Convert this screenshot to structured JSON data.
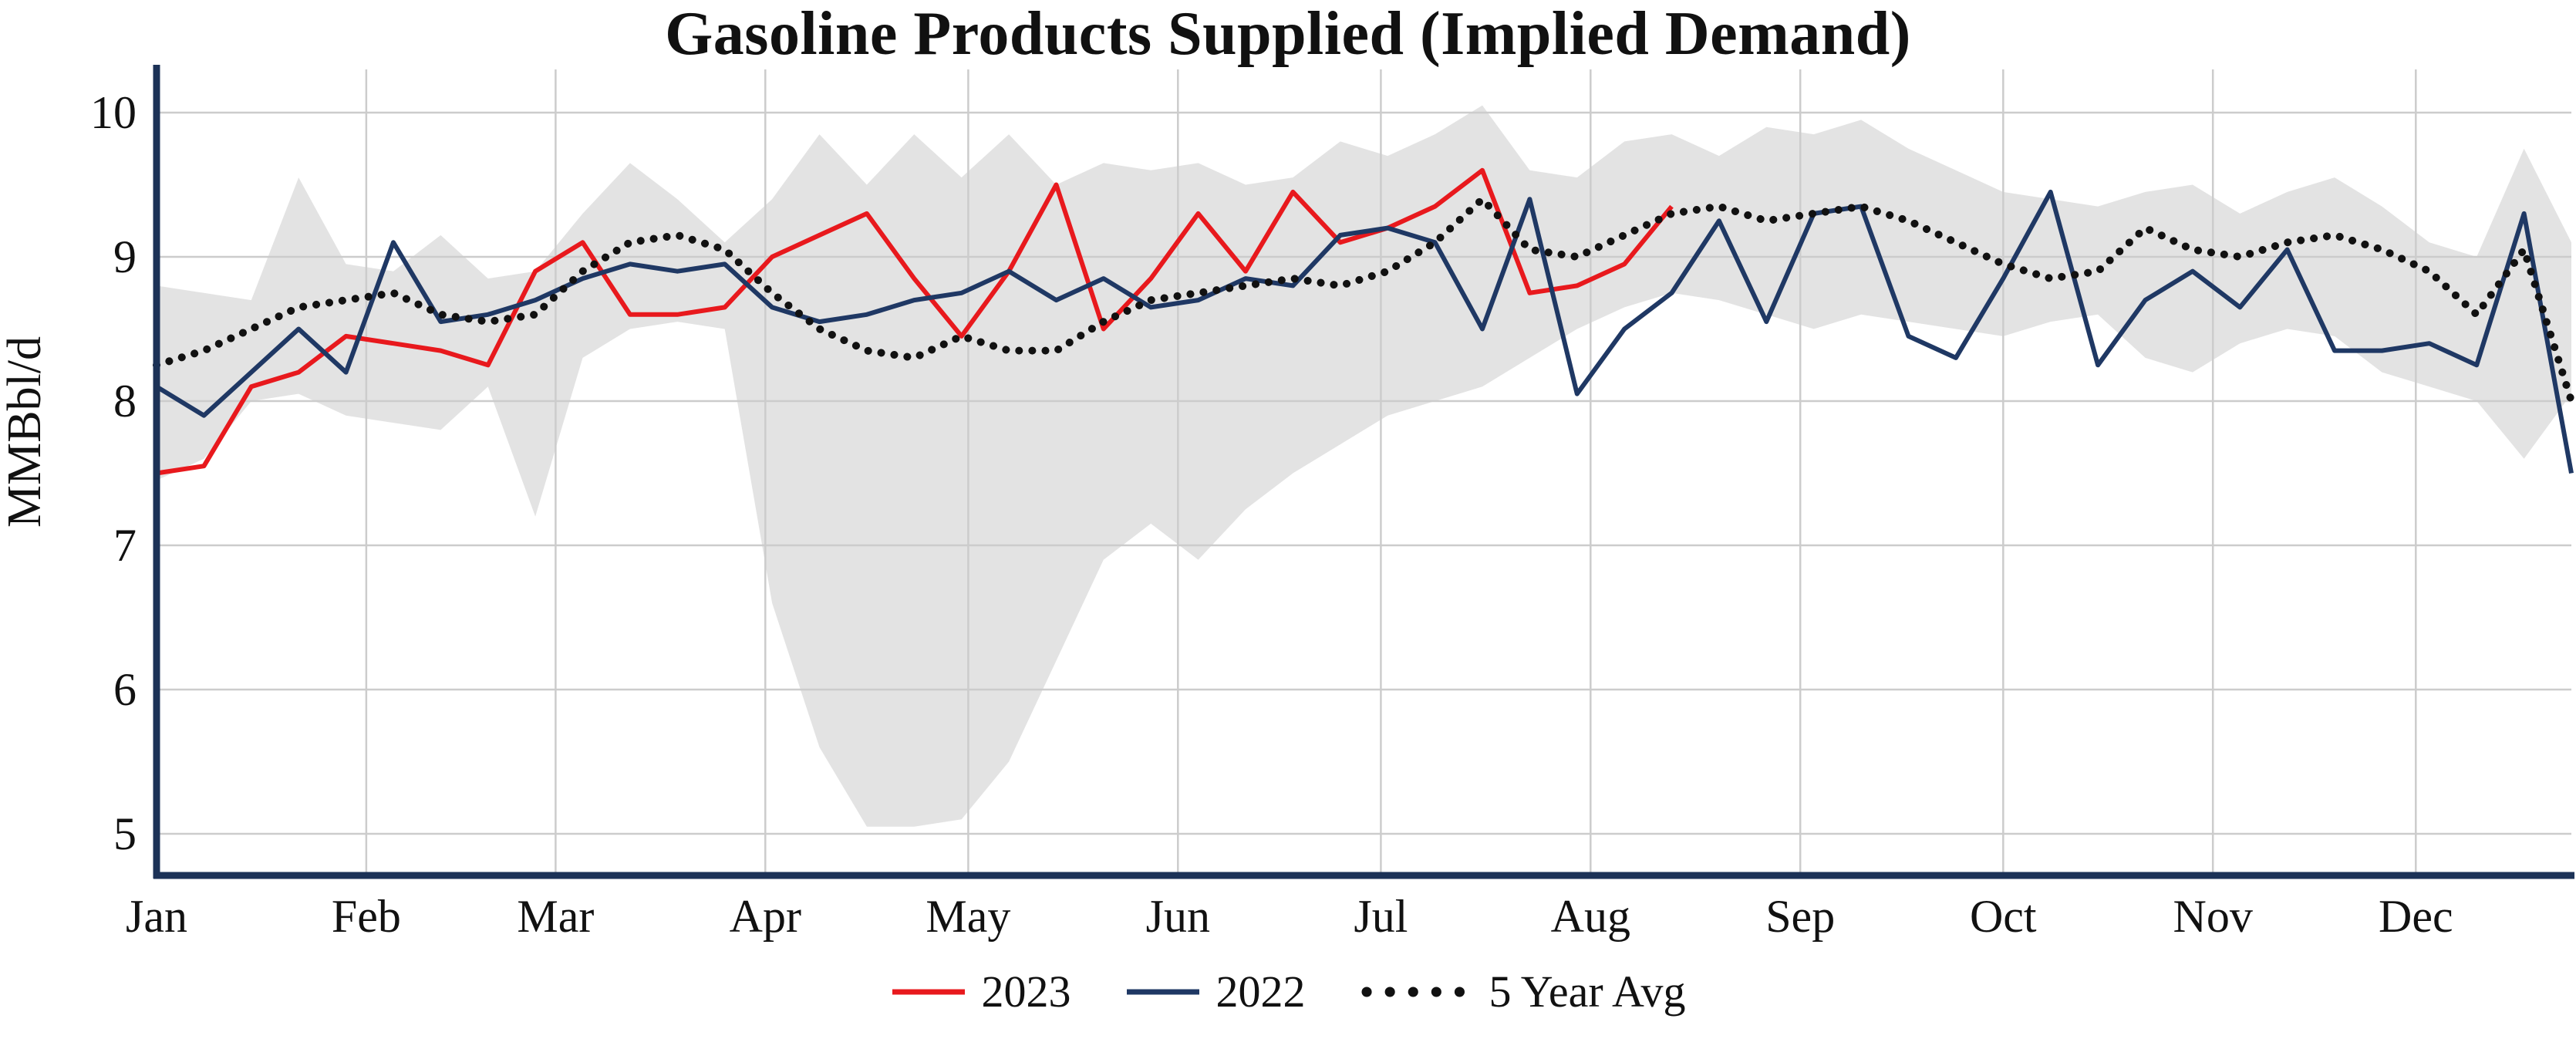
{
  "title": "Gasoline Products Supplied (Implied Demand)",
  "legend": [
    {
      "label": "2023",
      "color": "#e8191d",
      "line_style": "solid"
    },
    {
      "label": "2022",
      "color": "#1f3864",
      "line_style": "solid"
    },
    {
      "label": "5 Year Avg",
      "color": "#111111",
      "line_style": "dotted"
    }
  ],
  "colors": {
    "grid": "#cccccc",
    "axis": "#1c3257",
    "band": "#d9d9d9",
    "text": "#111111",
    "background": "#ffffff"
  },
  "chart_data": {
    "type": "line",
    "title": "Gasoline Products Supplied (Implied Demand)",
    "ylabel": "MMBbl/d",
    "xlabel": "",
    "x_unit": "week-of-year",
    "x_labels": [
      "Jan",
      "Feb",
      "Mar",
      "Apr",
      "May",
      "Jun",
      "Jul",
      "Aug",
      "Sep",
      "Oct",
      "Nov",
      "Dec"
    ],
    "month_start_day": [
      0,
      31,
      59,
      90,
      120,
      151,
      181,
      212,
      243,
      273,
      304,
      334
    ],
    "y_ticks": [
      5,
      6,
      7,
      8,
      9,
      10
    ],
    "ylim": [
      4.7,
      10.3
    ],
    "grid": true,
    "legend_position": "bottom",
    "series": [
      {
        "name": "2023",
        "color": "#e8191d",
        "line_style": "solid",
        "values": [
          7.5,
          7.55,
          8.1,
          8.2,
          8.45,
          8.4,
          8.35,
          8.25,
          8.9,
          9.1,
          8.6,
          8.6,
          8.65,
          9.0,
          9.15,
          9.3,
          8.85,
          8.45,
          8.9,
          9.5,
          8.5,
          8.85,
          9.3,
          8.9,
          9.45,
          9.1,
          9.2,
          9.35,
          9.6,
          8.75,
          8.8,
          8.95,
          9.35
        ]
      },
      {
        "name": "2022",
        "color": "#1f3864",
        "line_style": "solid",
        "values": [
          8.1,
          7.9,
          8.2,
          8.5,
          8.2,
          9.1,
          8.55,
          8.6,
          8.7,
          8.85,
          8.95,
          8.9,
          8.95,
          8.65,
          8.55,
          8.6,
          8.7,
          8.75,
          8.9,
          8.7,
          8.85,
          8.65,
          8.7,
          8.85,
          8.8,
          9.15,
          9.2,
          9.1,
          8.5,
          9.4,
          8.05,
          8.5,
          8.75,
          9.25,
          8.55,
          9.3,
          9.35,
          8.45,
          8.3,
          8.85,
          9.45,
          8.25,
          8.7,
          8.9,
          8.65,
          9.05,
          8.35,
          8.35,
          8.4,
          8.25,
          9.3,
          7.5
        ]
      },
      {
        "name": "5 Year Avg",
        "color": "#111111",
        "line_style": "dotted",
        "values": [
          8.25,
          8.35,
          8.5,
          8.65,
          8.7,
          8.75,
          8.6,
          8.55,
          8.6,
          8.9,
          9.1,
          9.15,
          9.05,
          8.75,
          8.5,
          8.35,
          8.3,
          8.45,
          8.35,
          8.35,
          8.55,
          8.7,
          8.75,
          8.8,
          8.85,
          8.8,
          8.9,
          9.1,
          9.4,
          9.05,
          9.0,
          9.15,
          9.3,
          9.35,
          9.25,
          9.3,
          9.35,
          9.25,
          9.1,
          8.95,
          8.85,
          8.9,
          9.2,
          9.05,
          9.0,
          9.1,
          9.15,
          9.05,
          8.9,
          8.6,
          9.05,
          8.0
        ]
      }
    ],
    "band": {
      "name": "5-year range",
      "color": "#d9d9d9",
      "upper": [
        8.8,
        8.75,
        8.7,
        9.55,
        8.95,
        8.9,
        9.15,
        8.85,
        8.9,
        9.3,
        9.65,
        9.4,
        9.1,
        9.4,
        9.85,
        9.5,
        9.85,
        9.55,
        9.85,
        9.5,
        9.65,
        9.6,
        9.65,
        9.5,
        9.55,
        9.8,
        9.7,
        9.85,
        10.05,
        9.6,
        9.55,
        9.8,
        9.85,
        9.7,
        9.9,
        9.85,
        9.95,
        9.75,
        9.6,
        9.45,
        9.4,
        9.35,
        9.45,
        9.5,
        9.3,
        9.45,
        9.55,
        9.35,
        9.1,
        9.0,
        9.75,
        9.1
      ],
      "lower": [
        7.45,
        7.6,
        8.0,
        8.05,
        7.9,
        7.85,
        7.8,
        8.1,
        7.2,
        8.3,
        8.5,
        8.55,
        8.5,
        6.6,
        5.6,
        5.05,
        5.05,
        5.1,
        5.5,
        6.2,
        6.9,
        7.15,
        6.9,
        7.25,
        7.5,
        7.7,
        7.9,
        8.0,
        8.1,
        8.3,
        8.5,
        8.65,
        8.75,
        8.7,
        8.6,
        8.5,
        8.6,
        8.55,
        8.5,
        8.45,
        8.55,
        8.6,
        8.3,
        8.2,
        8.4,
        8.5,
        8.45,
        8.2,
        8.1,
        8.0,
        7.6,
        8.05
      ]
    }
  }
}
